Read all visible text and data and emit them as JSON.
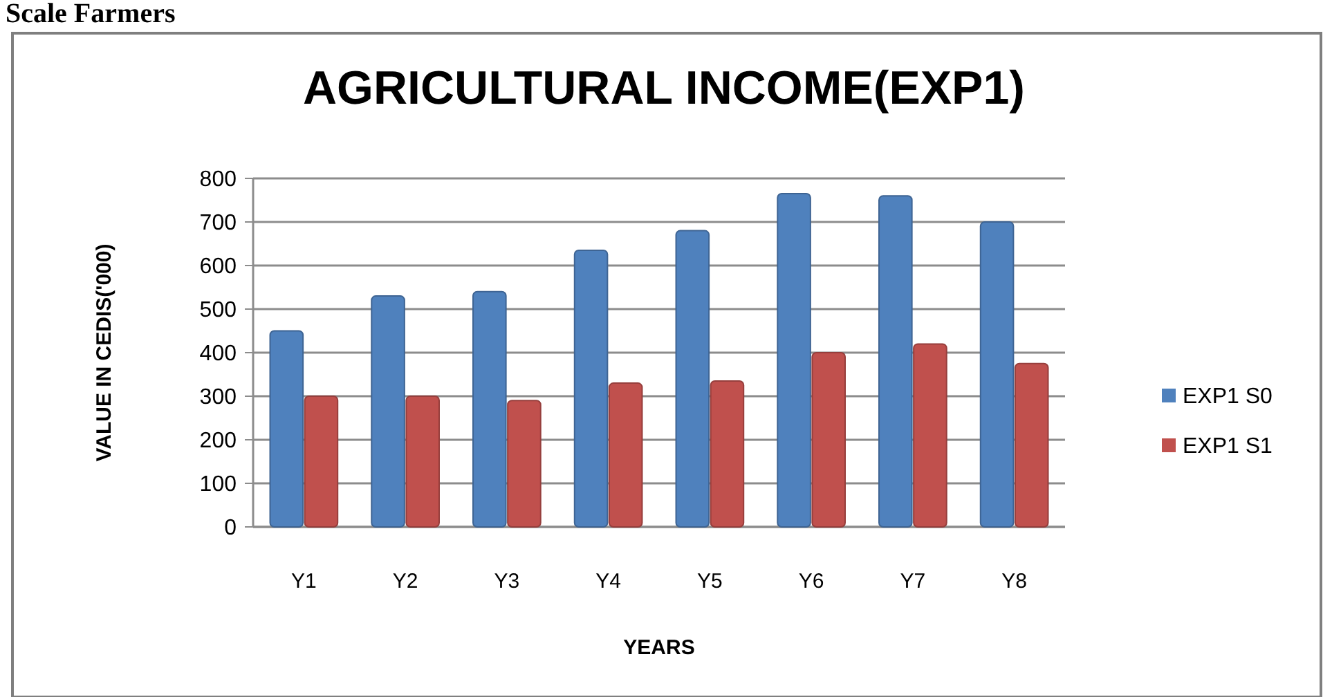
{
  "chart_data": {
    "type": "bar",
    "title": "AGRICULTURAL INCOME(EXP1)",
    "xlabel": "YEARS",
    "ylabel": "VALUE IN CEDIS('000)",
    "annotations": [
      "Scale Farmers"
    ],
    "categories": [
      "Y1",
      "Y2",
      "Y3",
      "Y4",
      "Y5",
      "Y6",
      "Y7",
      "Y8"
    ],
    "series": [
      {
        "name": "EXP1 S0",
        "color": "#4f81bd",
        "values": [
          450,
          530,
          540,
          635,
          680,
          765,
          760,
          700
        ]
      },
      {
        "name": "EXP1 S1",
        "color": "#c0504d",
        "values": [
          300,
          300,
          290,
          330,
          335,
          400,
          420,
          375
        ]
      }
    ],
    "ylim": [
      0,
      800
    ],
    "yticks": [
      0,
      100,
      200,
      300,
      400,
      500,
      600,
      700,
      800
    ],
    "grid": "y",
    "legend": "right"
  }
}
